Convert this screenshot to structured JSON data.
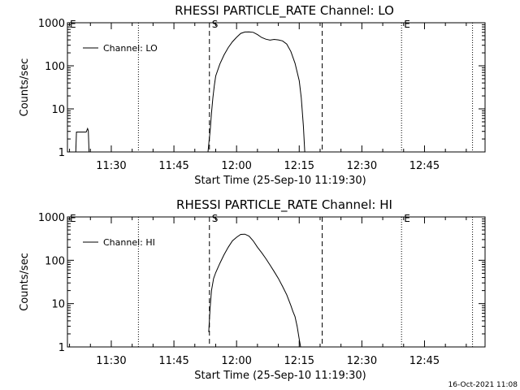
{
  "footer_timestamp": "16-Oct-2021 11:08",
  "chart_data": [
    {
      "type": "line",
      "title": "RHESSI PARTICLE_RATE Channel: LO",
      "xlabel": "Start Time (25-Sep-10 11:19:30)",
      "ylabel": "Counts/sec",
      "yscale": "log",
      "ylim": [
        1,
        1000
      ],
      "xlim": [
        "11:19:30",
        "12:59:30"
      ],
      "x_ticks": [
        "11:30",
        "11:45",
        "12:00",
        "12:15",
        "12:30",
        "12:45"
      ],
      "y_ticks": [
        "1",
        "10",
        "100",
        "1000"
      ],
      "legend": {
        "position": "top-left",
        "entries": [
          "Channel: LO"
        ]
      },
      "markers": [
        {
          "time": "11:19:30",
          "label": "E",
          "style": "dotted"
        },
        {
          "time": "11:36:30",
          "label": "",
          "style": "dotted"
        },
        {
          "time": "11:53:30",
          "label": "S",
          "style": "dashed"
        },
        {
          "time": "12:20:30",
          "label": "",
          "style": "dashed"
        },
        {
          "time": "12:39:30",
          "label": "E",
          "style": "dotted"
        },
        {
          "time": "12:56:30",
          "label": "",
          "style": "dotted"
        }
      ],
      "series": [
        {
          "name": "Channel: LO",
          "segments": [
            [
              [
                "11:21:30",
                1
              ],
              [
                "11:21:40",
                2.9
              ],
              [
                "11:24:00",
                2.9
              ],
              [
                "11:24:20",
                3.5
              ],
              [
                "11:24:30",
                3.1
              ],
              [
                "11:24:40",
                1
              ]
            ],
            [
              [
                "11:53:10",
                1
              ],
              [
                "11:53:25",
                1.8
              ],
              [
                "11:53:40",
                3
              ],
              [
                "11:54:00",
                8
              ],
              [
                "11:54:20",
                18
              ],
              [
                "11:54:40",
                35
              ],
              [
                "11:55:00",
                58
              ],
              [
                "11:56:00",
                110
              ],
              [
                "11:57:00",
                180
              ],
              [
                "11:58:00",
                265
              ],
              [
                "11:59:00",
                360
              ],
              [
                "12:00:00",
                460
              ],
              [
                "12:01:00",
                565
              ],
              [
                "12:02:00",
                610
              ],
              [
                "12:03:00",
                615
              ],
              [
                "12:04:00",
                600
              ],
              [
                "12:05:00",
                530
              ],
              [
                "12:06:00",
                455
              ],
              [
                "12:07:00",
                415
              ],
              [
                "12:08:00",
                395
              ],
              [
                "12:09:00",
                410
              ],
              [
                "12:10:00",
                400
              ],
              [
                "12:11:00",
                380
              ],
              [
                "12:12:00",
                320
              ],
              [
                "12:13:00",
                215
              ],
              [
                "12:14:00",
                115
              ],
              [
                "12:15:00",
                45
              ],
              [
                "12:15:30",
                18
              ],
              [
                "12:16:00",
                4
              ],
              [
                "12:16:20",
                1
              ]
            ]
          ]
        }
      ]
    },
    {
      "type": "line",
      "title": "RHESSI PARTICLE_RATE Channel: HI",
      "xlabel": "Start Time (25-Sep-10 11:19:30)",
      "ylabel": "Counts/sec",
      "yscale": "log",
      "ylim": [
        1,
        1000
      ],
      "xlim": [
        "11:19:30",
        "12:59:30"
      ],
      "x_ticks": [
        "11:30",
        "11:45",
        "12:00",
        "12:15",
        "12:30",
        "12:45"
      ],
      "y_ticks": [
        "1",
        "10",
        "100",
        "1000"
      ],
      "legend": {
        "position": "top-left",
        "entries": [
          "Channel: HI"
        ]
      },
      "markers": [
        {
          "time": "11:19:30",
          "label": "E",
          "style": "dotted"
        },
        {
          "time": "11:36:30",
          "label": "",
          "style": "dotted"
        },
        {
          "time": "11:53:30",
          "label": "S",
          "style": "dashed"
        },
        {
          "time": "12:20:30",
          "label": "",
          "style": "dashed"
        },
        {
          "time": "12:39:30",
          "label": "E",
          "style": "dotted"
        },
        {
          "time": "12:56:30",
          "label": "",
          "style": "dotted"
        }
      ],
      "series": [
        {
          "name": "Channel: HI",
          "segments": [
            [
              [
                "11:53:20",
                2.2
              ],
              [
                "11:53:40",
                8
              ],
              [
                "11:54:00",
                20
              ],
              [
                "11:54:30",
                38
              ],
              [
                "11:55:00",
                52
              ],
              [
                "11:56:00",
                85
              ],
              [
                "11:57:00",
                135
              ],
              [
                "11:58:00",
                200
              ],
              [
                "11:59:00",
                280
              ],
              [
                "12:00:00",
                340
              ],
              [
                "12:01:00",
                395
              ],
              [
                "12:02:00",
                400
              ],
              [
                "12:03:00",
                360
              ],
              [
                "12:04:00",
                280
              ],
              [
                "12:05:00",
                200
              ],
              [
                "12:06:00",
                150
              ],
              [
                "12:07:00",
                110
              ],
              [
                "12:08:00",
                78
              ],
              [
                "12:09:00",
                55
              ],
              [
                "12:10:00",
                38
              ],
              [
                "12:11:00",
                25
              ],
              [
                "12:12:00",
                16
              ],
              [
                "12:13:00",
                9
              ],
              [
                "12:13:30",
                6.5
              ],
              [
                "12:14:00",
                5
              ],
              [
                "12:14:30",
                3
              ],
              [
                "12:15:00",
                1.5
              ],
              [
                "12:15:20",
                1
              ]
            ]
          ]
        }
      ]
    }
  ]
}
